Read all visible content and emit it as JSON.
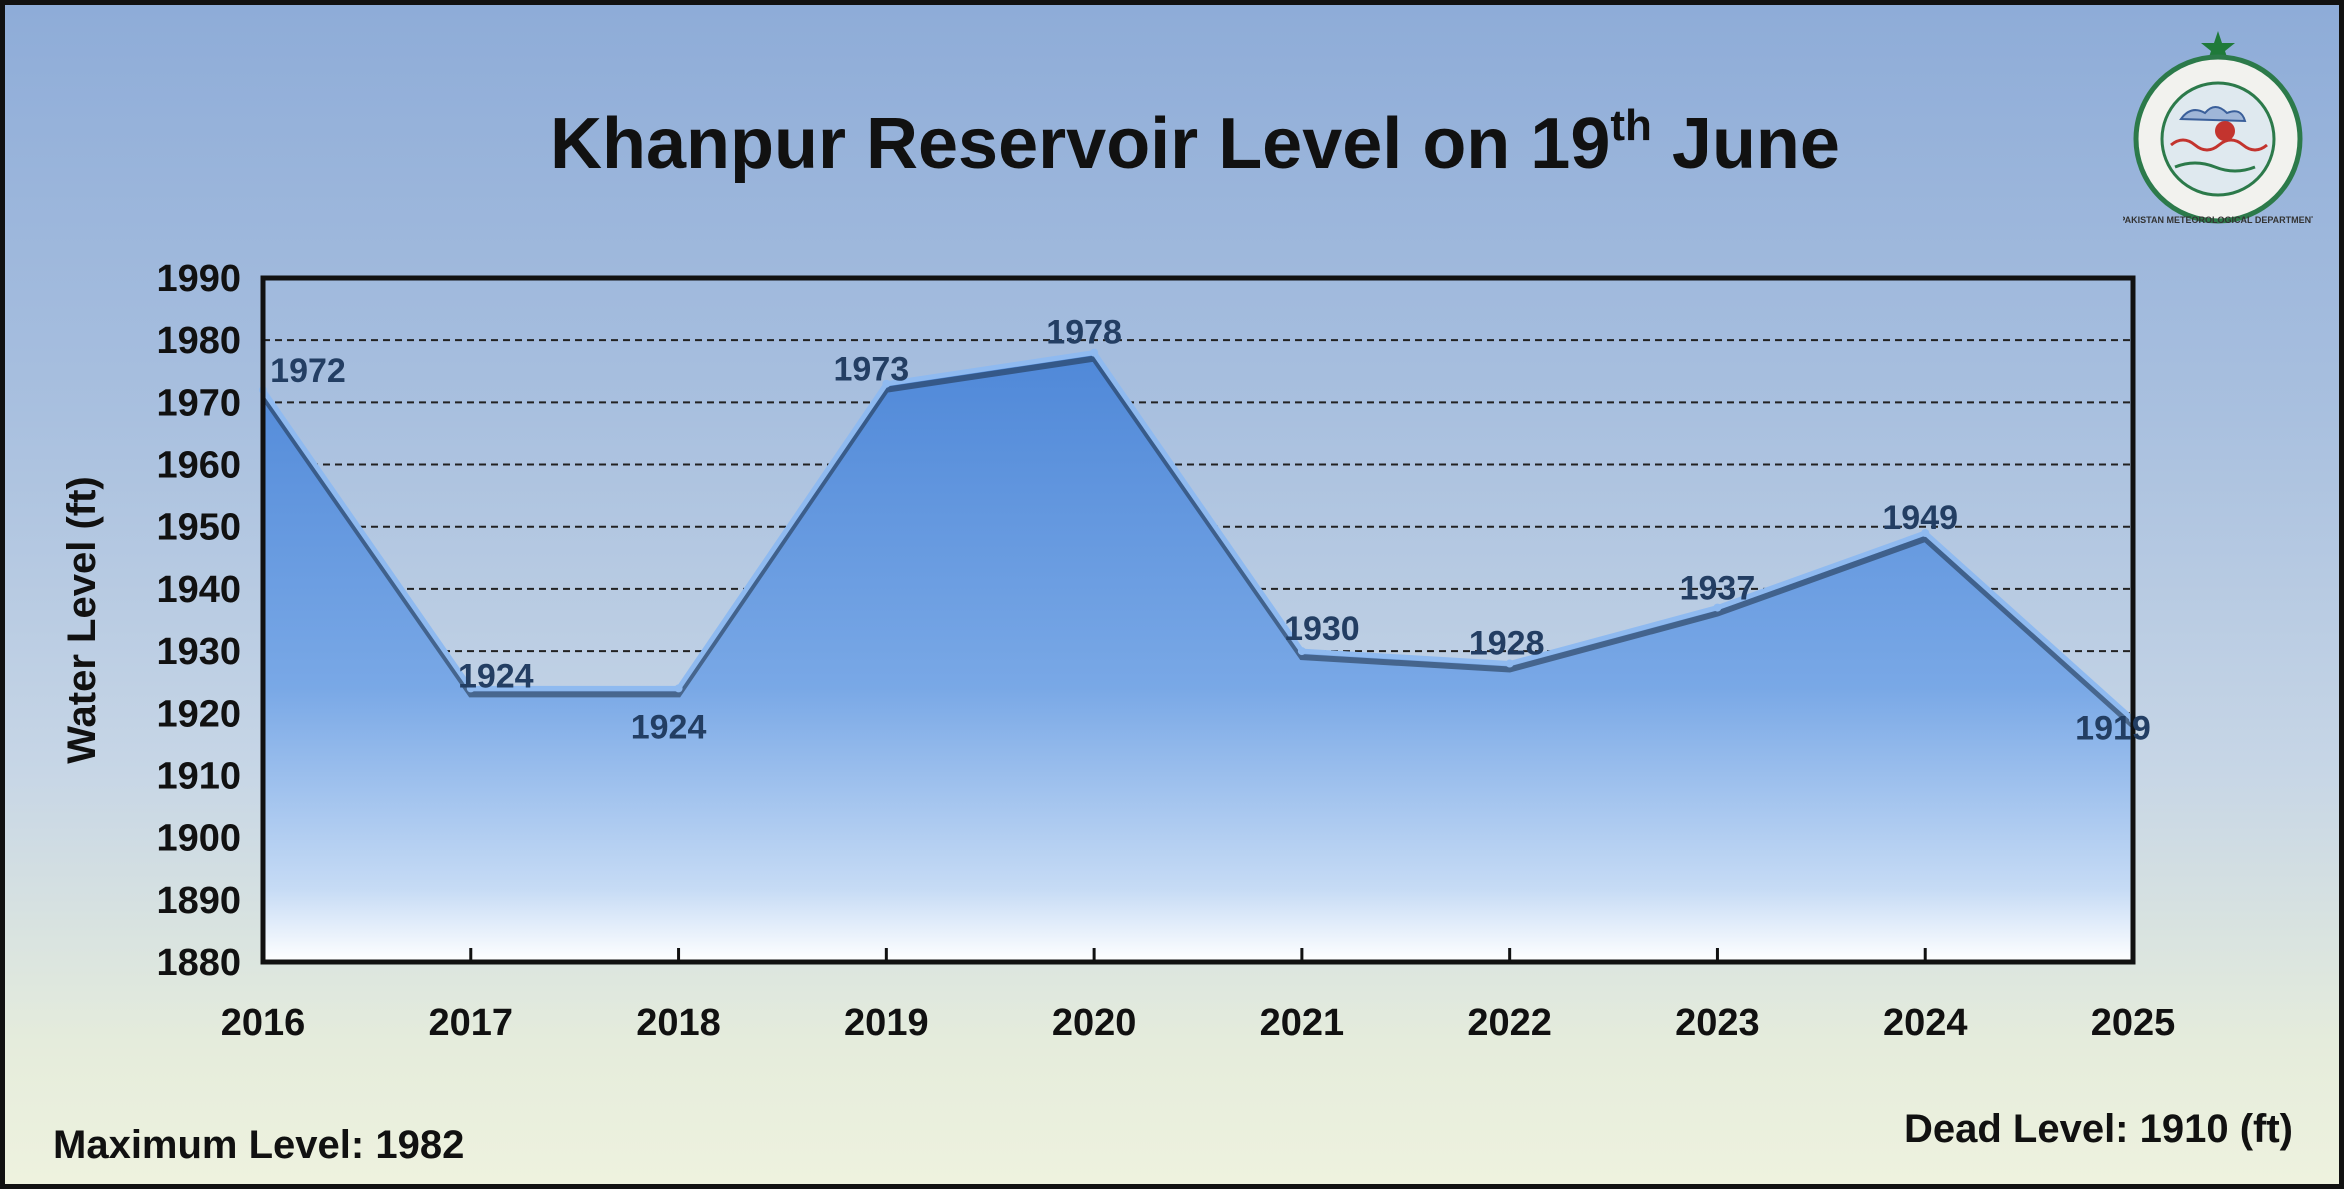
{
  "chart_data": {
    "type": "area",
    "title": "Khanpur Reservoir Level on 19th June",
    "title_parts": {
      "main": "Khanpur Reservoir Level on 19",
      "sup": "th",
      "end": " June"
    },
    "xlabel": "",
    "ylabel": "Water Level (ft)",
    "categories": [
      "2016",
      "2017",
      "2018",
      "2019",
      "2020",
      "2021",
      "2022",
      "2023",
      "2024",
      "2025"
    ],
    "values": [
      1972,
      1924,
      1924,
      1973,
      1978,
      1930,
      1928,
      1937,
      1949,
      1919
    ],
    "data_labels": [
      "1972",
      "1924",
      "1924",
      "1973",
      "1978",
      "1930",
      "1928",
      "1937",
      "1949",
      "1919"
    ],
    "ylim": [
      1880,
      1990
    ],
    "yticks": [
      "1880",
      "1890",
      "1900",
      "1910",
      "1920",
      "1930",
      "1940",
      "1950",
      "1960",
      "1970",
      "1980",
      "1990"
    ],
    "grid": true,
    "legend": "none",
    "colors": {
      "area_top": "#5b93dc",
      "area_bottom": "#e6f0fb",
      "grid": "#222222"
    }
  },
  "footer": {
    "max_level": "Maximum Level: 1982",
    "dead_level": "Dead Level: 1910 (ft)"
  },
  "logo": {
    "icon": "pakistan-meteorological-department-seal",
    "ring_text": "PAKISTAN METEOROLOGICAL DEPARTMENT",
    "colors": {
      "star": "#1f7a3a",
      "ring": "#2c7a4a"
    }
  }
}
